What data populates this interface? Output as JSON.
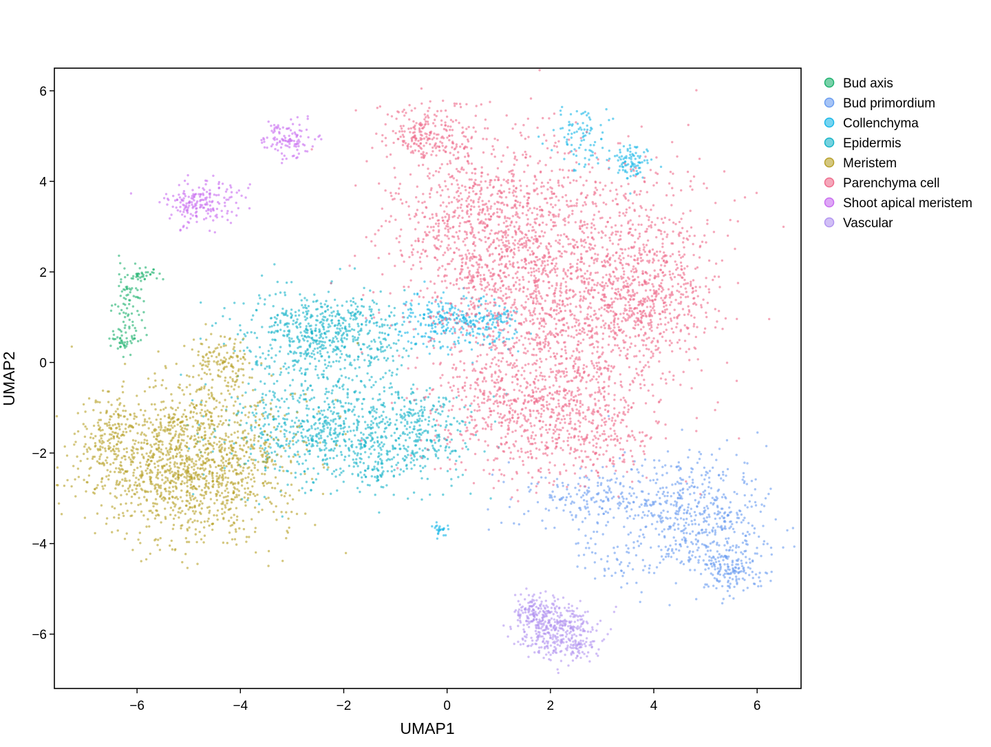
{
  "chart_data": {
    "type": "scatter",
    "title": "",
    "xlabel": "UMAP1",
    "ylabel": "UMAP2",
    "xlim": [
      -7.6,
      6.85
    ],
    "ylim": [
      -7.2,
      6.5
    ],
    "grid": false,
    "legend_position": "right",
    "x_ticks": [
      -6,
      -4,
      -2,
      0,
      2,
      4,
      6
    ],
    "y_ticks": [
      -6,
      -4,
      -2,
      0,
      2,
      4,
      6
    ],
    "x_tick_labels": [
      "−6",
      "−4",
      "−2",
      "0",
      "2",
      "4",
      "6"
    ],
    "y_tick_labels": [
      "−6",
      "−4",
      "−2",
      "0",
      "2",
      "4",
      "6"
    ],
    "series": [
      {
        "name": "Bud axis",
        "color": "#1fb26f",
        "clusters": [
          {
            "x": -6.15,
            "y": 1.3,
            "sx": 0.15,
            "sy": 0.45,
            "n": 80
          },
          {
            "x": -5.85,
            "y": 1.95,
            "sx": 0.15,
            "sy": 0.08,
            "n": 30
          },
          {
            "x": -6.25,
            "y": 0.5,
            "sx": 0.15,
            "sy": 0.15,
            "n": 40
          }
        ]
      },
      {
        "name": "Bud primordium",
        "color": "#6a9cf0",
        "clusters": [
          {
            "x": 4.9,
            "y": -3.4,
            "sx": 0.6,
            "sy": 0.7,
            "n": 420
          },
          {
            "x": 5.5,
            "y": -4.5,
            "sx": 0.35,
            "sy": 0.3,
            "n": 180
          },
          {
            "x": 3.2,
            "y": -3.0,
            "sx": 0.9,
            "sy": 0.35,
            "n": 260
          },
          {
            "x": 3.5,
            "y": -4.4,
            "sx": 0.5,
            "sy": 0.3,
            "n": 60
          }
        ]
      },
      {
        "name": "Collenchyma",
        "color": "#1ab8e8",
        "clusters": [
          {
            "x": 0.0,
            "y": 0.9,
            "sx": 0.55,
            "sy": 0.3,
            "n": 260
          },
          {
            "x": 0.9,
            "y": 0.9,
            "sx": 0.3,
            "sy": 0.25,
            "n": 90
          },
          {
            "x": 2.6,
            "y": 5.0,
            "sx": 0.3,
            "sy": 0.35,
            "n": 90
          },
          {
            "x": 3.6,
            "y": 4.45,
            "sx": 0.2,
            "sy": 0.2,
            "n": 90
          },
          {
            "x": -0.15,
            "y": -3.7,
            "sx": 0.07,
            "sy": 0.07,
            "n": 25
          }
        ]
      },
      {
        "name": "Epidermis",
        "color": "#19b4c9",
        "clusters": [
          {
            "x": -2.4,
            "y": 0.6,
            "sx": 0.8,
            "sy": 0.5,
            "n": 650
          },
          {
            "x": -2.2,
            "y": -1.5,
            "sx": 1.1,
            "sy": 0.6,
            "n": 800
          },
          {
            "x": -0.5,
            "y": -1.6,
            "sx": 0.5,
            "sy": 0.5,
            "n": 200
          },
          {
            "x": -1.4,
            "y": -2.4,
            "sx": 0.2,
            "sy": 0.15,
            "n": 40
          }
        ]
      },
      {
        "name": "Meristem",
        "color": "#b8a12a",
        "clusters": [
          {
            "x": -5.0,
            "y": -2.2,
            "sx": 1.0,
            "sy": 0.85,
            "n": 1500
          },
          {
            "x": -4.3,
            "y": 0.05,
            "sx": 0.3,
            "sy": 0.35,
            "n": 130
          },
          {
            "x": -6.5,
            "y": -1.7,
            "sx": 0.2,
            "sy": 0.4,
            "n": 120
          }
        ]
      },
      {
        "name": "Parenchyma cell",
        "color": "#ef6c8c",
        "clusters": [
          {
            "x": 2.4,
            "y": 1.6,
            "sx": 1.3,
            "sy": 1.5,
            "n": 1800
          },
          {
            "x": 0.6,
            "y": 3.0,
            "sx": 0.9,
            "sy": 1.1,
            "n": 800
          },
          {
            "x": -0.4,
            "y": 5.0,
            "sx": 0.4,
            "sy": 0.35,
            "n": 220
          },
          {
            "x": 1.5,
            "y": -1.0,
            "sx": 0.9,
            "sy": 0.8,
            "n": 600
          },
          {
            "x": 4.0,
            "y": 1.5,
            "sx": 0.5,
            "sy": 0.7,
            "n": 350
          },
          {
            "x": 2.8,
            "y": -1.5,
            "sx": 0.6,
            "sy": 0.5,
            "n": 200
          }
        ]
      },
      {
        "name": "Shoot apical meristem",
        "color": "#c86df0",
        "clusters": [
          {
            "x": -4.9,
            "y": 3.5,
            "sx": 0.3,
            "sy": 0.25,
            "n": 140
          },
          {
            "x": -3.1,
            "y": 4.95,
            "sx": 0.25,
            "sy": 0.2,
            "n": 110
          },
          {
            "x": -4.3,
            "y": 3.6,
            "sx": 0.3,
            "sy": 0.2,
            "n": 50
          }
        ]
      },
      {
        "name": "Vascular",
        "color": "#b294f0",
        "clusters": [
          {
            "x": 2.1,
            "y": -5.9,
            "sx": 0.4,
            "sy": 0.3,
            "n": 350
          },
          {
            "x": 1.7,
            "y": -5.5,
            "sx": 0.2,
            "sy": 0.2,
            "n": 100
          },
          {
            "x": 2.5,
            "y": -6.3,
            "sx": 0.2,
            "sy": 0.15,
            "n": 60
          }
        ]
      }
    ]
  }
}
